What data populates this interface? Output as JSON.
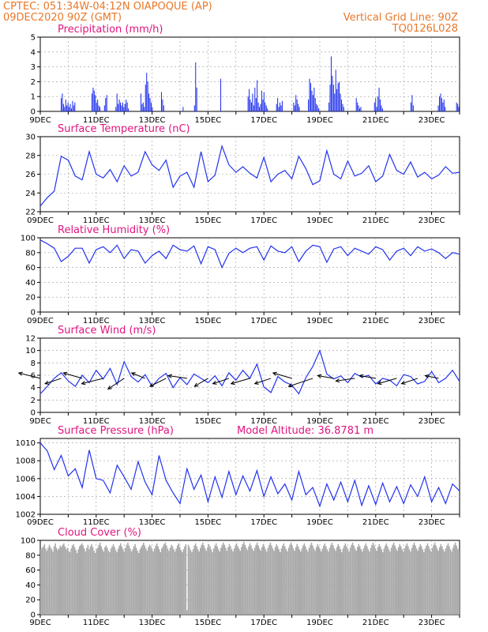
{
  "header": {
    "line1": "CPTEC:   051:34W-04:12N   OIAPOQUE (AP)",
    "line2": "09DEC2020 90Z (GMT)",
    "vgrid": "Vertical Grid Line: 90Z",
    "code": "TQ0126L028"
  },
  "colors": {
    "header": "#e8782a",
    "title": "#e0157f",
    "series": "#2233ee",
    "cloud": "#aaaaaa"
  },
  "x_ticks": [
    "9DEC",
    "11DEC",
    "13DEC",
    "15DEC",
    "17DEC",
    "19DEC",
    "21DEC",
    "23DEC"
  ],
  "x_ticks_long": [
    "09DEC",
    "11DEC",
    "13DEC",
    "15DEC",
    "17DEC",
    "19DEC",
    "21DEC",
    "23DEC"
  ],
  "chart_data": [
    {
      "type": "bar",
      "title": "Precipitation (mm/h)",
      "ylim": [
        0,
        5
      ],
      "yticks": [
        "0",
        "1",
        "2",
        "3",
        "4",
        "5"
      ],
      "grid": true,
      "x": "hours since 09DEC2020 09Z",
      "values": [
        0,
        0,
        0,
        0,
        0,
        0,
        0,
        0,
        0,
        0,
        0,
        0,
        0,
        0,
        0,
        0,
        0,
        0,
        0.9,
        1.2,
        0.5,
        0.3,
        0.8,
        0.4,
        0.6,
        0.3,
        0.5,
        0.2,
        0.7,
        0.4,
        0.6,
        0,
        0,
        0,
        0,
        0,
        0,
        0,
        0,
        0,
        0,
        0,
        0,
        0,
        0,
        1.2,
        1.6,
        1.4,
        1.1,
        0.6,
        0.8,
        0.4,
        0.3,
        0,
        0,
        0,
        0.4,
        0.9,
        1.1,
        0,
        0,
        0,
        0,
        0,
        0,
        0,
        0.3,
        1.2,
        0.5,
        0.8,
        0.6,
        0.4,
        0.6,
        0.3,
        0.5,
        0.8,
        0.6,
        0.2,
        0,
        0,
        0,
        0,
        0,
        0,
        0,
        0,
        0,
        0,
        1.2,
        0.5,
        0.6,
        0.3,
        1.8,
        2.6,
        2.0,
        1.2,
        0.9,
        0.6,
        0.3,
        0,
        0,
        0,
        0,
        0,
        0,
        0,
        1.3,
        0.8,
        0.4,
        0,
        0,
        0,
        0,
        0,
        0,
        0,
        0,
        0,
        0,
        0,
        0,
        0,
        0,
        0,
        0,
        0.3,
        0,
        0,
        0,
        0,
        0,
        0,
        0,
        0,
        0,
        0.4,
        3.3,
        1.6,
        0,
        0,
        0,
        0,
        0,
        0,
        0,
        0,
        0,
        0,
        0,
        0,
        0,
        0,
        0,
        0,
        0,
        0,
        0,
        0,
        2.2,
        0,
        0,
        0,
        0,
        0,
        0,
        0,
        0,
        0,
        0,
        0,
        0,
        0,
        0,
        0,
        0,
        0,
        0,
        0,
        0,
        0,
        0,
        0,
        1.0,
        1.5,
        0.8,
        0.6,
        1.2,
        0.4,
        1.6,
        0.9,
        2.1,
        0.6,
        0.3,
        0.5,
        1.4,
        0.8,
        1.3,
        0.6,
        0.4,
        0.2,
        0,
        0,
        0,
        0,
        0,
        0,
        0,
        0.5,
        0.9,
        0.3,
        0.6,
        0.4,
        0.7,
        0,
        0,
        0,
        0,
        0,
        0,
        0,
        0,
        0,
        0.6,
        0.4,
        1.1,
        0.8,
        0.5,
        0.3,
        0,
        0,
        0,
        0,
        0,
        0,
        0,
        0.8,
        2.2,
        1.9,
        1.4,
        1.1,
        1.6,
        0.9,
        0.5,
        0.4,
        0.2,
        0,
        0,
        0,
        0,
        0,
        0,
        0,
        0,
        0.6,
        1.8,
        3.7,
        2.4,
        1.8,
        1.2,
        2.8,
        1.5,
        1.9,
        2.0,
        1.2,
        0.8,
        0.5,
        0.3,
        0,
        0,
        0,
        0,
        0,
        0,
        0,
        0,
        0,
        0,
        0.9,
        0.6,
        0.4,
        0.2,
        0.3,
        0,
        0,
        0,
        0,
        0,
        0,
        0,
        0,
        0,
        0,
        0,
        0.6,
        0.9,
        0.3,
        1.0,
        1.6,
        0.8,
        0.4,
        0.2,
        0,
        0,
        0,
        0,
        0,
        0,
        0,
        0,
        0,
        0,
        0,
        0,
        0,
        0,
        0,
        0,
        0,
        0,
        0,
        0,
        0,
        0,
        0,
        0,
        0.6,
        1.1,
        0.4,
        0,
        0,
        0,
        0,
        0,
        0,
        0,
        0,
        0,
        0,
        0,
        0,
        0,
        0,
        0,
        0,
        0,
        0,
        0,
        0,
        0,
        0.4,
        1.0,
        1.2,
        0.9,
        0.6,
        0.8,
        0.3,
        0,
        0,
        0,
        0,
        0,
        0,
        0,
        0,
        0,
        0.6,
        0.5,
        0.3
      ]
    },
    {
      "type": "line",
      "title": "Surface Temperature (nC)",
      "ylim": [
        22,
        30
      ],
      "yticks": [
        "22",
        "24",
        "26",
        "28",
        "30"
      ],
      "grid": true,
      "x": [
        0,
        6,
        12,
        18,
        24,
        30,
        36,
        42,
        48,
        54,
        60,
        66,
        72,
        78,
        84,
        90,
        96,
        102,
        108,
        114,
        120,
        126,
        132,
        138,
        144,
        150,
        156,
        162,
        168,
        174,
        180,
        186,
        192,
        198,
        204,
        210,
        216,
        222,
        228,
        234,
        240,
        246,
        252,
        258,
        264,
        270,
        276,
        282,
        288,
        294,
        300,
        306,
        312,
        318,
        324,
        330,
        336,
        342,
        348,
        354,
        360
      ],
      "y": [
        22.6,
        23.5,
        24.2,
        27.9,
        27.5,
        25.8,
        25.4,
        28.4,
        26.0,
        25.6,
        26.5,
        25.2,
        26.9,
        25.8,
        26.2,
        28.4,
        27.0,
        26.4,
        27.5,
        24.6,
        25.8,
        26.2,
        24.6,
        28.4,
        25.2,
        25.9,
        29.0,
        27.0,
        26.2,
        26.8,
        26.1,
        25.6,
        27.8,
        25.2,
        26.0,
        26.4,
        25.5,
        27.9,
        26.6,
        24.9,
        25.3,
        28.5,
        26.0,
        25.5,
        27.4,
        25.8,
        26.1,
        26.9,
        25.2,
        25.8,
        28.1,
        26.4,
        26.0,
        27.3,
        25.7,
        26.2,
        25.5,
        25.9,
        26.8,
        26.1,
        26.2
      ]
    },
    {
      "type": "line",
      "title": "Relative Humidity (%)",
      "ylim": [
        0,
        100
      ],
      "yticks": [
        "0",
        "20",
        "40",
        "60",
        "80",
        "100"
      ],
      "grid": true,
      "x": [
        0,
        6,
        12,
        18,
        24,
        30,
        36,
        42,
        48,
        54,
        60,
        66,
        72,
        78,
        84,
        90,
        96,
        102,
        108,
        114,
        120,
        126,
        132,
        138,
        144,
        150,
        156,
        162,
        168,
        174,
        180,
        186,
        192,
        198,
        204,
        210,
        216,
        222,
        228,
        234,
        240,
        246,
        252,
        258,
        264,
        270,
        276,
        282,
        288,
        294,
        300,
        306,
        312,
        318,
        324,
        330,
        336,
        342,
        348,
        354,
        360
      ],
      "y": [
        97,
        92,
        86,
        68,
        75,
        86,
        86,
        66,
        84,
        88,
        80,
        90,
        72,
        84,
        82,
        66,
        76,
        82,
        72,
        90,
        84,
        82,
        89,
        65,
        88,
        84,
        60,
        79,
        86,
        80,
        86,
        88,
        70,
        89,
        82,
        80,
        88,
        68,
        82,
        90,
        88,
        67,
        85,
        88,
        76,
        86,
        82,
        78,
        88,
        84,
        70,
        82,
        86,
        76,
        88,
        82,
        85,
        80,
        72,
        80,
        78
      ]
    },
    {
      "type": "line",
      "title": "Surface Wind (m/s)",
      "ylim": [
        0,
        12
      ],
      "yticks": [
        "0",
        "2",
        "4",
        "6",
        "8",
        "10",
        "12"
      ],
      "grid": true,
      "x": [
        0,
        6,
        12,
        18,
        24,
        30,
        36,
        42,
        48,
        54,
        60,
        66,
        72,
        78,
        84,
        90,
        96,
        102,
        108,
        114,
        120,
        126,
        132,
        138,
        144,
        150,
        156,
        162,
        168,
        174,
        180,
        186,
        192,
        198,
        204,
        210,
        216,
        222,
        228,
        234,
        240,
        246,
        252,
        258,
        264,
        270,
        276,
        282,
        288,
        294,
        300,
        306,
        312,
        318,
        324,
        330,
        336,
        342,
        348,
        354,
        360
      ],
      "y": [
        3.0,
        4.2,
        5.5,
        6.4,
        5.1,
        4.2,
        6.0,
        4.8,
        6.8,
        5.4,
        7.1,
        4.5,
        8.2,
        5.8,
        4.9,
        6.1,
        4.2,
        5.5,
        6.3,
        4.0,
        5.6,
        4.5,
        6.2,
        5.5,
        4.8,
        5.9,
        4.3,
        6.4,
        5.2,
        6.8,
        5.5,
        7.8,
        4.1,
        3.2,
        5.8,
        4.9,
        4.4,
        3.0,
        5.6,
        7.4,
        10.0,
        6.2,
        5.4,
        5.9,
        4.8,
        6.3,
        5.7,
        6.0,
        4.6,
        5.5,
        5.2,
        4.3,
        6.1,
        5.8,
        4.6,
        5.0,
        6.6,
        4.8,
        5.5,
        6.8,
        5.0
      ],
      "arrows": [
        {
          "t": 0,
          "u": -8,
          "v": 2
        },
        {
          "t": 18,
          "u": -6,
          "v": -2
        },
        {
          "t": 36,
          "u": -7,
          "v": 2
        },
        {
          "t": 54,
          "u": -8,
          "v": -2
        },
        {
          "t": 72,
          "u": -6,
          "v": -4
        },
        {
          "t": 90,
          "u": -5,
          "v": 2
        },
        {
          "t": 108,
          "u": -6,
          "v": -3
        },
        {
          "t": 126,
          "u": -7,
          "v": 1
        },
        {
          "t": 144,
          "u": -5,
          "v": -3
        },
        {
          "t": 162,
          "u": -6,
          "v": -2
        },
        {
          "t": 180,
          "u": -7,
          "v": -2
        },
        {
          "t": 198,
          "u": -6,
          "v": -2
        },
        {
          "t": 216,
          "u": -7,
          "v": 2
        },
        {
          "t": 234,
          "u": -9,
          "v": -3
        },
        {
          "t": 252,
          "u": -6,
          "v": 1
        },
        {
          "t": 270,
          "u": -7,
          "v": -1
        },
        {
          "t": 288,
          "u": -6,
          "v": 1
        },
        {
          "t": 306,
          "u": -7,
          "v": -2
        },
        {
          "t": 324,
          "u": -6,
          "v": -2
        },
        {
          "t": 342,
          "u": -5,
          "v": 1
        }
      ]
    },
    {
      "type": "line",
      "title": "Surface Pressure (hPa)",
      "annotation": "Model Altitude: 36.8781  m",
      "ylim": [
        1002,
        1010.5
      ],
      "yticks": [
        "1002",
        "1004",
        "1006",
        "1008",
        "1010"
      ],
      "grid": true,
      "x": [
        0,
        6,
        12,
        18,
        24,
        30,
        36,
        42,
        48,
        54,
        60,
        66,
        72,
        78,
        84,
        90,
        96,
        102,
        108,
        114,
        120,
        126,
        132,
        138,
        144,
        150,
        156,
        162,
        168,
        174,
        180,
        186,
        192,
        198,
        204,
        210,
        216,
        222,
        228,
        234,
        240,
        246,
        252,
        258,
        264,
        270,
        276,
        282,
        288,
        294,
        300,
        306,
        312,
        318,
        324,
        330,
        336,
        342,
        348,
        354,
        360
      ],
      "y": [
        1010.0,
        1009.1,
        1007.0,
        1008.6,
        1006.3,
        1007.1,
        1005.0,
        1009.2,
        1006.0,
        1005.8,
        1004.4,
        1007.5,
        1006.2,
        1004.8,
        1007.9,
        1005.6,
        1004.2,
        1008.6,
        1005.8,
        1004.4,
        1003.2,
        1007.1,
        1004.8,
        1006.4,
        1003.4,
        1006.2,
        1003.9,
        1006.8,
        1004.2,
        1006.3,
        1004.6,
        1006.9,
        1004.0,
        1006.2,
        1004.3,
        1005.4,
        1003.6,
        1006.8,
        1004.2,
        1005.0,
        1002.9,
        1005.4,
        1003.6,
        1005.6,
        1003.4,
        1005.8,
        1003.0,
        1005.2,
        1003.1,
        1005.5,
        1003.4,
        1005.1,
        1003.2,
        1005.3,
        1004.0,
        1006.2,
        1003.4,
        1005.0,
        1003.2,
        1005.4,
        1004.6
      ]
    },
    {
      "type": "bar",
      "title": "Cloud Cover (%)",
      "ylim": [
        0,
        100
      ],
      "yticks": [
        "0",
        "20",
        "40",
        "60",
        "80",
        "100"
      ],
      "grid": true,
      "x": "hours since 09DEC2020 09Z",
      "values": [
        88,
        90,
        92,
        95,
        89,
        86,
        90,
        94,
        91,
        88,
        85,
        92,
        96,
        90,
        87,
        89,
        93,
        91,
        94,
        96,
        92,
        88,
        90,
        86,
        84,
        89,
        93,
        95,
        91,
        87,
        83,
        88,
        92,
        94,
        96,
        93,
        89,
        85,
        90,
        94,
        88,
        92,
        95,
        91,
        86,
        83,
        88,
        90,
        94,
        97,
        92,
        88,
        85,
        91,
        93,
        90,
        86,
        84,
        89,
        92,
        95,
        91,
        87,
        84,
        89,
        93,
        96,
        92,
        88,
        85,
        90,
        94,
        97,
        93,
        89,
        85,
        88,
        92,
        95,
        90,
        86,
        83,
        88,
        91,
        94,
        97,
        93,
        89,
        86,
        91,
        94,
        92,
        88,
        85,
        89,
        93,
        96,
        92,
        88,
        84,
        89,
        92,
        95,
        97,
        93,
        89,
        86,
        90,
        94,
        92,
        88,
        85,
        89,
        93,
        96,
        91,
        87,
        84,
        88,
        92,
        95,
        6,
        94,
        91,
        87,
        84,
        88,
        93,
        96,
        92,
        88,
        85,
        90,
        94,
        97,
        93,
        89,
        86,
        91,
        95,
        92,
        88,
        84,
        89,
        93,
        96,
        92,
        88,
        85,
        90,
        94,
        97,
        94,
        90,
        86,
        91,
        95,
        92,
        88,
        85,
        89,
        93,
        96,
        92,
        89,
        86,
        91,
        95,
        98,
        94,
        90,
        87,
        92,
        96,
        93,
        89,
        86,
        90,
        94,
        97,
        93,
        89,
        86,
        91,
        95,
        92,
        88,
        85,
        90,
        94,
        97,
        93,
        89,
        86,
        91,
        95,
        92,
        88,
        84,
        89,
        93,
        96,
        92,
        88,
        85,
        90,
        94,
        97,
        93,
        89,
        86,
        91,
        95,
        92,
        88,
        85,
        89,
        93,
        96,
        92,
        88,
        85,
        90,
        94,
        97,
        93,
        89,
        86,
        91,
        95,
        92,
        88,
        85,
        89,
        93,
        96,
        92,
        88,
        85,
        90,
        94,
        97,
        93,
        89,
        86,
        91,
        95,
        92,
        88,
        84,
        89,
        93,
        96,
        92,
        88,
        85,
        90,
        94,
        97,
        93,
        89,
        86,
        91,
        95,
        92,
        88,
        85,
        89,
        93,
        96,
        92,
        88,
        85,
        90,
        94,
        97,
        93,
        89,
        86,
        91,
        95,
        92,
        88,
        84,
        89,
        93,
        96,
        92,
        88,
        85,
        90,
        94,
        97,
        93,
        89,
        86,
        91,
        95,
        92,
        88,
        85,
        89,
        93,
        96,
        92,
        88,
        85,
        90,
        94,
        97,
        93,
        89,
        86,
        91,
        95,
        92,
        88,
        84,
        89,
        93,
        96,
        92,
        88,
        85,
        90,
        94,
        97,
        93,
        89,
        86,
        91,
        95,
        92,
        88,
        85,
        89,
        93,
        96,
        92,
        88,
        85,
        90,
        94,
        97,
        93,
        89,
        86
      ]
    }
  ]
}
